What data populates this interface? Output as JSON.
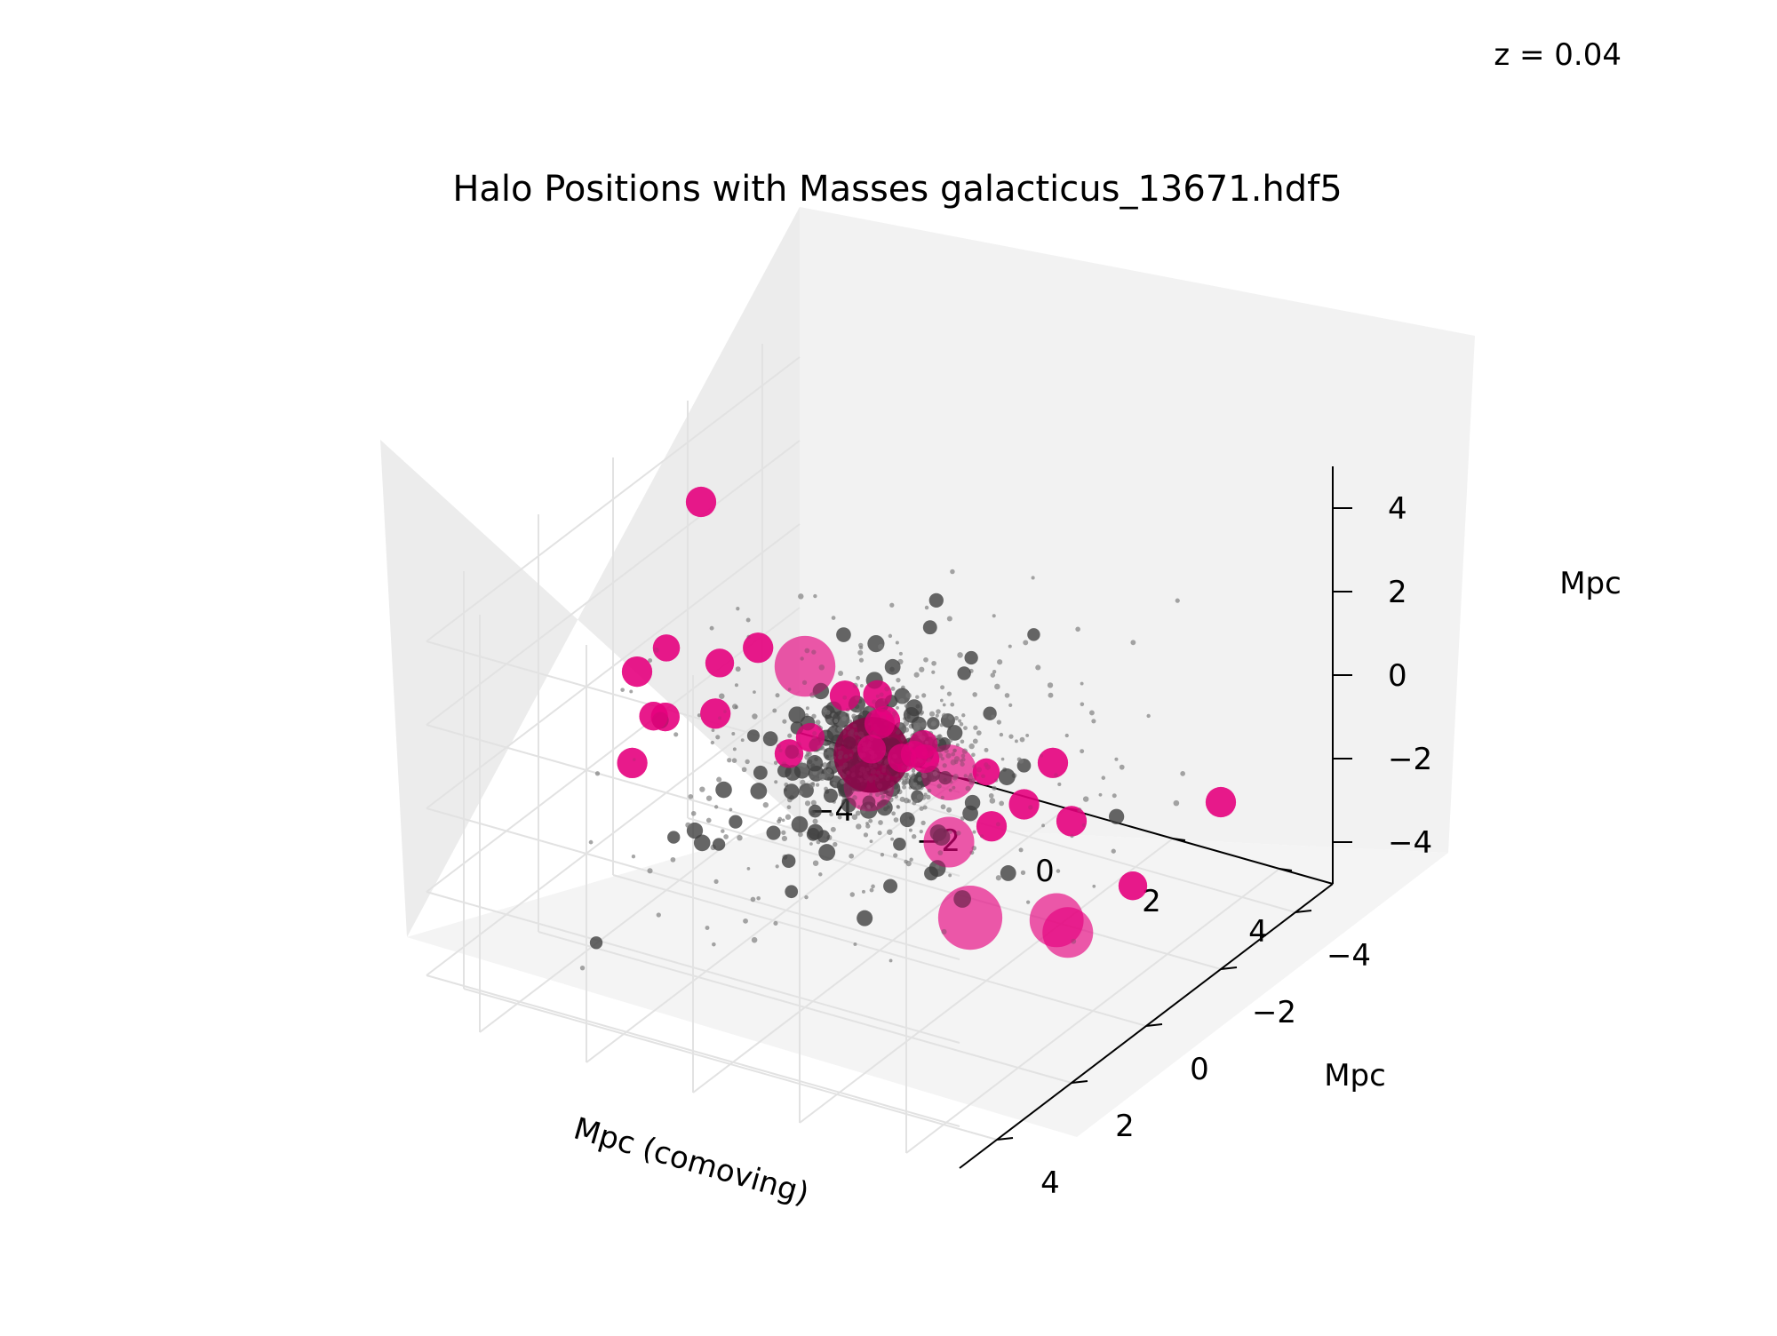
{
  "annotation": "z = 0.04",
  "chart_data": {
    "type": "scatter",
    "projection": "3d",
    "title": "Halo Positions with Masses galacticus_13671.hdf5",
    "xlabel": "Mpc (comoving)",
    "ylabel": "Mpc",
    "zlabel": "Mpc",
    "xlim": [
      -5,
      5
    ],
    "ylim": [
      -5,
      5
    ],
    "zlim": [
      -5,
      5
    ],
    "x_ticks": [
      "−4",
      "−2",
      "0",
      "2",
      "4"
    ],
    "y_ticks": [
      "−4",
      "−2",
      "0",
      "2",
      "4"
    ],
    "z_ticks": [
      "−4",
      "−2",
      "0",
      "2",
      "4"
    ],
    "grid": true,
    "colors": {
      "small_halos": "#555555",
      "massive_halos": "#e6007e",
      "most_massive": "#8b0046"
    },
    "points": [
      {
        "x": 0.2,
        "y": 0.5,
        "z": 0.1,
        "size": 4.5
      },
      {
        "x": -1.4,
        "y": 0.0,
        "z": 1.3,
        "size": 3.6
      },
      {
        "x": 3.6,
        "y": 0.4,
        "z": -2.7,
        "size": 3.2
      },
      {
        "x": 1.7,
        "y": 0.0,
        "z": -3.6,
        "size": 3.8
      },
      {
        "x": 0.6,
        "y": -1.0,
        "z": -1.2,
        "size": 3.3
      },
      {
        "x": 2.0,
        "y": 1.0,
        "z": -1.0,
        "size": 3.0
      },
      {
        "x": 0.5,
        "y": 1.0,
        "z": -0.2,
        "size": 3.0
      },
      {
        "x": 3.6,
        "y": 0.1,
        "z": -3.2,
        "size": 3.0
      },
      {
        "x": -3.0,
        "y": 0.5,
        "z": 5.0,
        "size": 1.8
      },
      {
        "x": -4.2,
        "y": 0.5,
        "z": 0.5,
        "size": 1.8
      },
      {
        "x": -4.5,
        "y": 0.2,
        "z": -2.0,
        "size": 1.8
      },
      {
        "x": -3.4,
        "y": 1.2,
        "z": 0.2,
        "size": 1.7
      },
      {
        "x": -2.0,
        "y": 0.4,
        "z": 1.8,
        "size": 1.8
      },
      {
        "x": -3.0,
        "y": 0.0,
        "z": 0.8,
        "size": 1.7
      },
      {
        "x": 1.5,
        "y": 2.0,
        "z": 2.4,
        "size": 1.8
      },
      {
        "x": 0.1,
        "y": 2.0,
        "z": 1.5,
        "size": 1.7
      },
      {
        "x": -0.5,
        "y": -0.5,
        "z": -0.7,
        "size": 1.7
      },
      {
        "x": -1.7,
        "y": 0.0,
        "z": -0.9,
        "size": 1.7
      },
      {
        "x": -3.5,
        "y": -0.6,
        "z": -1.0,
        "size": 1.8
      },
      {
        "x": -4.0,
        "y": 0.0,
        "z": 0.8,
        "size": 1.6
      },
      {
        "x": 2.0,
        "y": 0.0,
        "z": 0.0,
        "size": 1.6
      },
      {
        "x": 1.4,
        "y": -1.0,
        "z": -2.2,
        "size": 1.8
      },
      {
        "x": 5.0,
        "y": -2.0,
        "z": -1.0,
        "size": 1.8
      },
      {
        "x": 3.6,
        "y": 0.0,
        "z": -0.6,
        "size": 1.8
      },
      {
        "x": 0.8,
        "y": -3.5,
        "z": -2.6,
        "size": 1.8
      },
      {
        "x": -1.0,
        "y": -2.6,
        "z": -2.2,
        "size": 1.7
      },
      {
        "x": -2.0,
        "y": -2.8,
        "z": -1.5,
        "size": 1.7
      },
      {
        "x": -0.2,
        "y": -1.5,
        "z": -1.5,
        "size": 1.7
      },
      {
        "x": -3.6,
        "y": 0.6,
        "z": -0.3,
        "size": 1.7
      },
      {
        "x": -0.7,
        "y": -1.0,
        "z": -0.5,
        "size": 1.8
      },
      {
        "x": 2.5,
        "y": -0.3,
        "z": -0.8,
        "size": 1.8
      },
      {
        "x": 4.4,
        "y": -0.5,
        "z": -2.2,
        "size": 1.7
      },
      {
        "x": -1.0,
        "y": -0.5,
        "z": 0.4,
        "size": 1.8
      },
      {
        "x": 1.0,
        "y": 0.5,
        "z": 0.4,
        "size": 1.6
      },
      {
        "x": 0.0,
        "y": -0.6,
        "z": -0.8,
        "size": 1.7
      }
    ]
  }
}
